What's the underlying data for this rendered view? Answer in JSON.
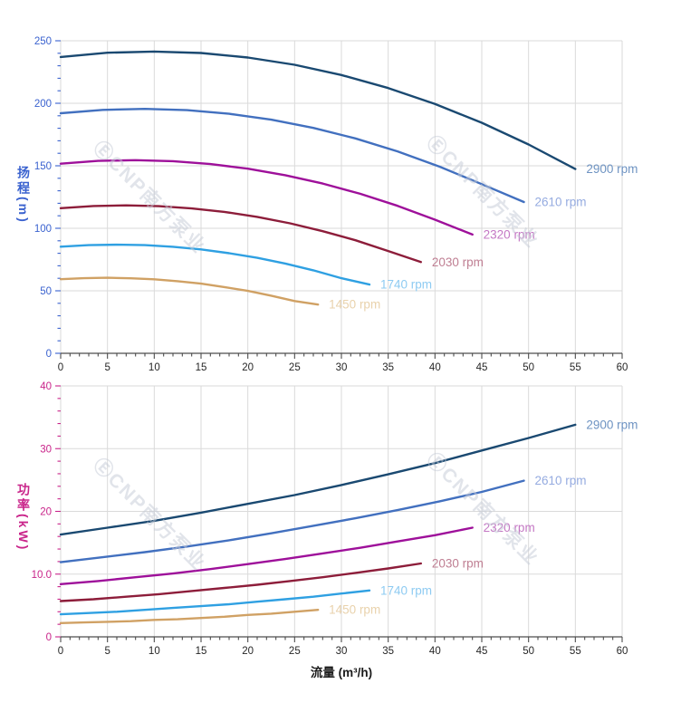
{
  "watermark": {
    "text": "ⒺCNP南方泵业",
    "color": "#c5cbd7"
  },
  "chart_data": {
    "type": "line",
    "title": "",
    "grid": true,
    "legend_position": "curve-end-labels",
    "x_axis": {
      "label": "流量 (m³/h)",
      "min": 0,
      "max": 60,
      "major_step": 5,
      "minor_step": 1,
      "tick_labels": [
        "0",
        "5",
        "10",
        "15",
        "20",
        "25",
        "30",
        "35",
        "40",
        "45",
        "50",
        "55",
        "60"
      ],
      "tick_color": "#4d4d4d",
      "tick_label_color": "#262626"
    },
    "charts": [
      {
        "id": "head",
        "y_axis": {
          "label": "扬程(m)",
          "min": 0,
          "max": 250,
          "major_step": 50,
          "minor_step": 10,
          "tick_labels": [
            "0",
            "50",
            "100",
            "150",
            "200",
            "250"
          ],
          "color": "#3a62cf"
        },
        "series": [
          {
            "label": "2900 rpm",
            "color": "#1a4971",
            "label_color": "#6e93c2",
            "x": [
              0,
              5,
              10,
              15,
              20,
              25,
              30,
              35,
              40,
              45,
              50,
              55
            ],
            "y": [
              237,
              240.4,
              241.4,
              240.2,
              236.6,
              230.8,
              222.6,
              212.2,
              199.4,
              184.4,
              167,
              147.4
            ]
          },
          {
            "label": "2610 rpm",
            "color": "#4270bf",
            "label_color": "#95abe0",
            "x": [
              0,
              4.5,
              9,
              13.5,
              18,
              22.5,
              27,
              31.5,
              36,
              40.5,
              45,
              49.5
            ],
            "y": [
              192,
              194.7,
              195.5,
              194.5,
              191.6,
              186.9,
              180.3,
              171.9,
              161.5,
              149.3,
              135.3,
              121
            ]
          },
          {
            "label": "2320 rpm",
            "color": "#9e109a",
            "label_color": "#c478c4",
            "x": [
              0,
              4,
              8,
              12,
              16,
              20,
              24,
              28,
              32,
              36,
              40,
              44
            ],
            "y": [
              151.7,
              153.9,
              154.5,
              153.7,
              151.4,
              147.7,
              142.5,
              135.8,
              127.6,
              118,
              106.9,
              95
            ]
          },
          {
            "label": "2030 rpm",
            "color": "#8d1d3a",
            "label_color": "#bf7e92",
            "x": [
              0,
              3.5,
              7,
              10.5,
              14,
              17.5,
              21,
              24.5,
              28,
              31.5,
              35,
              38.5
            ],
            "y": [
              116.1,
              117.8,
              118.3,
              117.7,
              115.9,
              113.1,
              109.1,
              104,
              97.7,
              90.4,
              81.8,
              73
            ]
          },
          {
            "label": "1740 rpm",
            "color": "#2fa0e2",
            "label_color": "#8ecbf2",
            "x": [
              0,
              3,
              6,
              9,
              12,
              15,
              18,
              21,
              24,
              27,
              30,
              33
            ],
            "y": [
              85.3,
              86.5,
              86.9,
              86.5,
              85.2,
              83.1,
              80.1,
              76.4,
              71.8,
              66.4,
              60.1,
              55
            ]
          },
          {
            "label": "1450 rpm",
            "color": "#d0a164",
            "label_color": "#e9d2ac",
            "x": [
              0,
              2.5,
              5,
              7.5,
              10,
              12.5,
              15,
              17.5,
              20,
              22.5,
              25,
              27.5
            ],
            "y": [
              59.3,
              60.1,
              60.4,
              60,
              59.2,
              57.7,
              55.7,
              53,
              49.9,
              46.1,
              41.8,
              39
            ]
          }
        ]
      },
      {
        "id": "power",
        "y_axis": {
          "label": "功率(kW)",
          "min": 0,
          "max": 40,
          "major_step": 10,
          "minor_step": 2,
          "tick_labels": [
            "0",
            "10.0",
            "20",
            "30",
            "40"
          ],
          "color": "#c9248a"
        },
        "series": [
          {
            "label": "2900 rpm",
            "color": "#1a4971",
            "label_color": "#6e93c2",
            "x": [
              0,
              5,
              10,
              15,
              20,
              25,
              30,
              35,
              40,
              45,
              50,
              55
            ],
            "y": [
              16.3,
              17.4,
              18.5,
              19.8,
              21.2,
              22.6,
              24.2,
              25.9,
              27.7,
              29.7,
              31.7,
              33.8
            ]
          },
          {
            "label": "2610 rpm",
            "color": "#4270bf",
            "label_color": "#95abe0",
            "x": [
              0,
              4.5,
              9,
              13.5,
              18,
              22.5,
              27,
              31.5,
              36,
              40.5,
              45,
              49.5
            ],
            "y": [
              11.9,
              12.7,
              13.5,
              14.4,
              15.4,
              16.5,
              17.7,
              18.9,
              20.2,
              21.6,
              23.1,
              24.9
            ]
          },
          {
            "label": "2320 rpm",
            "color": "#9e109a",
            "label_color": "#c478c4",
            "x": [
              0,
              4,
              8,
              12,
              16,
              20,
              24,
              28,
              32,
              36,
              40,
              44
            ],
            "y": [
              8.4,
              8.9,
              9.5,
              10.1,
              10.8,
              11.6,
              12.4,
              13.3,
              14.2,
              15.2,
              16.2,
              17.4
            ]
          },
          {
            "label": "2030 rpm",
            "color": "#8d1d3a",
            "label_color": "#bf7e92",
            "x": [
              0,
              3.5,
              7,
              10.5,
              14,
              17.5,
              21,
              24.5,
              28,
              31.5,
              35,
              38.5
            ],
            "y": [
              5.7,
              6,
              6.4,
              6.8,
              7.3,
              7.8,
              8.3,
              8.9,
              9.5,
              10.2,
              10.9,
              11.7
            ]
          },
          {
            "label": "1740 rpm",
            "color": "#2fa0e2",
            "label_color": "#8ecbf2",
            "x": [
              0,
              3,
              6,
              9,
              12,
              15,
              18,
              21,
              24,
              27,
              30,
              33
            ],
            "y": [
              3.6,
              3.8,
              4,
              4.3,
              4.6,
              4.9,
              5.2,
              5.6,
              6,
              6.4,
              6.9,
              7.4
            ]
          },
          {
            "label": "1450 rpm",
            "color": "#d0a164",
            "label_color": "#e9d2ac",
            "x": [
              0,
              2.5,
              5,
              7.5,
              10,
              12.5,
              15,
              17.5,
              20,
              22.5,
              25,
              27.5
            ],
            "y": [
              2.2,
              2.3,
              2.4,
              2.5,
              2.7,
              2.8,
              3,
              3.2,
              3.5,
              3.7,
              4,
              4.3
            ]
          }
        ]
      }
    ]
  }
}
